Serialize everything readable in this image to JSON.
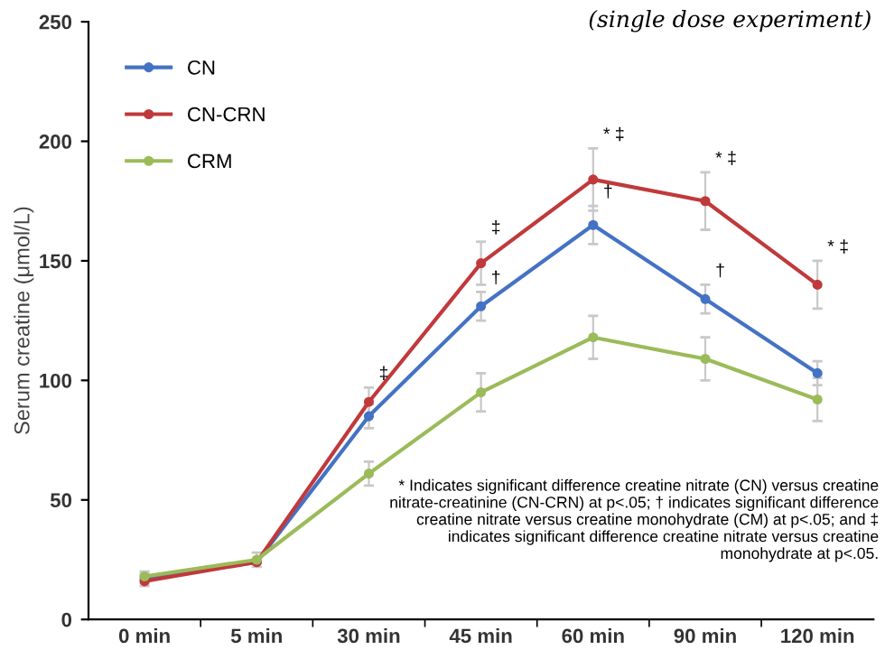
{
  "chart_data": {
    "type": "line",
    "title": "(single dose experiment)",
    "ylabel": "Serum creatine (μmol/L)",
    "categories": [
      "0 min",
      "5 min",
      "30 min",
      "45 min",
      "60 min",
      "90 min",
      "120 min"
    ],
    "series": [
      {
        "name": "CN",
        "color": "#4472c4",
        "values": [
          17,
          24,
          85,
          131,
          165,
          134,
          103
        ],
        "errors": [
          2,
          null,
          5,
          6,
          8,
          6,
          5
        ]
      },
      {
        "name": "CN-CRN",
        "color": "#c0393b",
        "values": [
          16,
          24,
          91,
          149,
          184,
          175,
          140
        ],
        "errors": [
          2,
          null,
          6,
          9,
          13,
          12,
          10
        ]
      },
      {
        "name": "CRM",
        "color": "#9bbb59",
        "values": [
          18,
          25,
          61,
          95,
          118,
          109,
          92
        ],
        "errors": [
          2,
          3,
          5,
          8,
          9,
          9,
          9
        ]
      }
    ],
    "ylim": [
      0,
      250
    ],
    "yticks": [
      0,
      50,
      100,
      150,
      200,
      250
    ],
    "grid": false,
    "legend": "top left",
    "marker": "circle",
    "line_style": "solid",
    "annotations": [
      {
        "text": "‡",
        "x": "30 min",
        "y": 97
      },
      {
        "text": "†",
        "x": "45 min",
        "y": 137
      },
      {
        "text": "‡",
        "x": "45 min",
        "y": 158
      },
      {
        "text": "†",
        "x": "60 min",
        "y": 173
      },
      {
        "text": "* ‡",
        "x": "60 min",
        "y": 197
      },
      {
        "text": "†",
        "x": "90 min",
        "y": 140
      },
      {
        "text": "* ‡",
        "x": "90 min",
        "y": 187
      },
      {
        "text": "* ‡",
        "x": "120 min",
        "y": 150
      },
      "* Indicates significant difference creatine nitrate (CN) versus creatine nitrate-creatinine (CN-CRN) at p<.05; † indicates significant difference creatine nitrate versus creatine monohydrate (CM) at p<.05; and ‡ indicates significant difference creatine nitrate versus creatine monohydrate at p<.05."
    ]
  }
}
